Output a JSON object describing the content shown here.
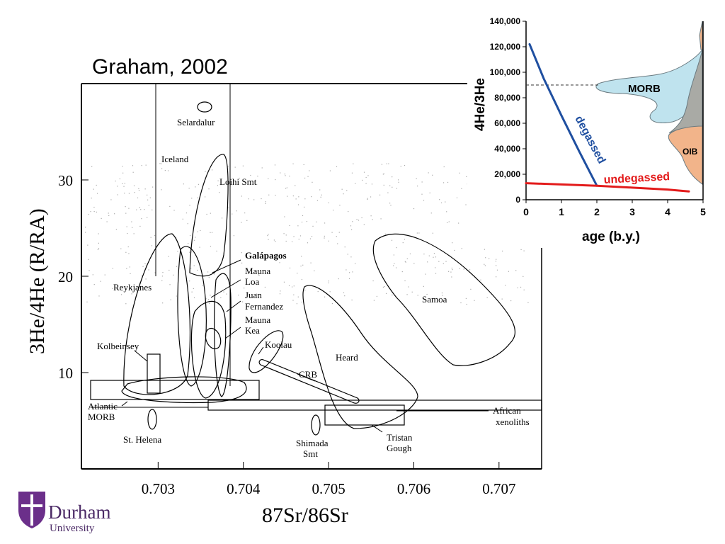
{
  "slide": {
    "title": "Graham, 2002"
  },
  "logo": {
    "name": "Durham",
    "sub": "University"
  },
  "chart_data": [
    {
      "type": "scatter",
      "title": "",
      "xlabel": "87Sr/86Sr",
      "ylabel": "3He/4He (R/RA)",
      "xlim": [
        0.7021,
        0.7075
      ],
      "ylim": [
        0,
        40
      ],
      "x_ticks": [
        0.703,
        0.704,
        0.705,
        0.706,
        0.707
      ],
      "x_tick_labels": [
        "0.703",
        "0.704",
        "0.705",
        "0.706",
        "0.707"
      ],
      "y_ticks": [
        10,
        20,
        30
      ],
      "y_tick_labels": [
        "10",
        "20",
        "30"
      ],
      "fields": [
        {
          "name": "Selardalur",
          "x": 0.70355,
          "y": 37.5
        },
        {
          "name": "Iceland",
          "x_range": [
            0.7029,
            0.7038
          ],
          "y_range": [
            9,
            40
          ]
        },
        {
          "name": "Loihi Smt",
          "x": 0.7037,
          "y": 23
        },
        {
          "name": "Reykjanes",
          "x": 0.7029,
          "y": 15
        },
        {
          "name": "Galápagos",
          "x": 0.7036,
          "y": 15
        },
        {
          "name": "Mauna Loa",
          "x": 0.70375,
          "y": 18
        },
        {
          "name": "Juan Fernandez",
          "x": 0.7036,
          "y": 13
        },
        {
          "name": "Mauna Kea",
          "x": 0.70355,
          "y": 14
        },
        {
          "name": "Koolau",
          "x": 0.7043,
          "y": 13.5
        },
        {
          "name": "Kolbeinsey",
          "x": 0.7029,
          "y": 10
        },
        {
          "name": "Samoa",
          "x": 0.7062,
          "y": 17
        },
        {
          "name": "Heard",
          "x": 0.7051,
          "y": 12
        },
        {
          "name": "CRB",
          "x": 0.7048,
          "y": 10
        },
        {
          "name": "Atlantic MORB",
          "x": 0.7031,
          "y": 8.5
        },
        {
          "name": "St. Helena",
          "x": 0.70295,
          "y": 5
        },
        {
          "name": "Shimada Smt",
          "x": 0.70485,
          "y": 5
        },
        {
          "name": "Tristan Gough",
          "x": 0.70545,
          "y": 5.5
        },
        {
          "name": "African xenoliths",
          "x_range": [
            0.7036,
            0.7075
          ],
          "y": 6.5
        }
      ],
      "labels": {
        "selardalur": "Selardalur",
        "iceland": "Iceland",
        "loihi": "Loihi Smt",
        "reykjanes": "Reykjanes",
        "galapagos": "Galápagos",
        "mauna_loa_1": "Mauna",
        "mauna_loa_2": "Loa",
        "juan_1": "Juan",
        "juan_2": "Fernandez",
        "mauna_kea_1": "Mauna",
        "mauna_kea_2": "Kea",
        "koolau": "Koolau",
        "kolbeinsey": "Kolbeinsey",
        "samoa": "Samoa",
        "heard": "Heard",
        "crb": "CRB",
        "atlantic_1": "Atlantic",
        "atlantic_2": "MORB",
        "st_helena": "St. Helena",
        "shimada_1": "Shimada",
        "shimada_2": "Smt",
        "tristan_1": "Tristan",
        "tristan_2": "Gough",
        "african_1": "African",
        "african_2": "xenoliths"
      }
    },
    {
      "type": "line",
      "title": "",
      "xlabel": "age (b.y.)",
      "ylabel": "4He/3He",
      "xlim": [
        0,
        5
      ],
      "ylim": [
        0,
        140000
      ],
      "x_ticks": [
        0,
        1,
        2,
        3,
        4,
        5
      ],
      "x_tick_labels": [
        "0",
        "1",
        "2",
        "3",
        "4",
        "5"
      ],
      "y_ticks": [
        0,
        20000,
        40000,
        60000,
        80000,
        100000,
        120000,
        140000
      ],
      "y_tick_labels": [
        "0",
        "20,000",
        "40,000",
        "60,000",
        "80,000",
        "100,000",
        "120,000",
        "140,000"
      ],
      "reference_line_y": 90000,
      "series": [
        {
          "name": "degassed",
          "color": "#1f4fa0",
          "x": [
            0.1,
            0.5,
            1.0,
            1.5,
            2.0
          ],
          "y": [
            122000,
            95000,
            66000,
            38000,
            11000
          ]
        },
        {
          "name": "undegassed",
          "color": "#e31b1b",
          "x": [
            0,
            1,
            2,
            3,
            4,
            4.6
          ],
          "y": [
            13000,
            12000,
            11000,
            9500,
            8000,
            6500
          ]
        }
      ],
      "distributions": [
        {
          "name": "MORB",
          "color": "#bfe3ee"
        },
        {
          "name": "OIB",
          "color": "#f2b48a"
        }
      ]
    }
  ]
}
